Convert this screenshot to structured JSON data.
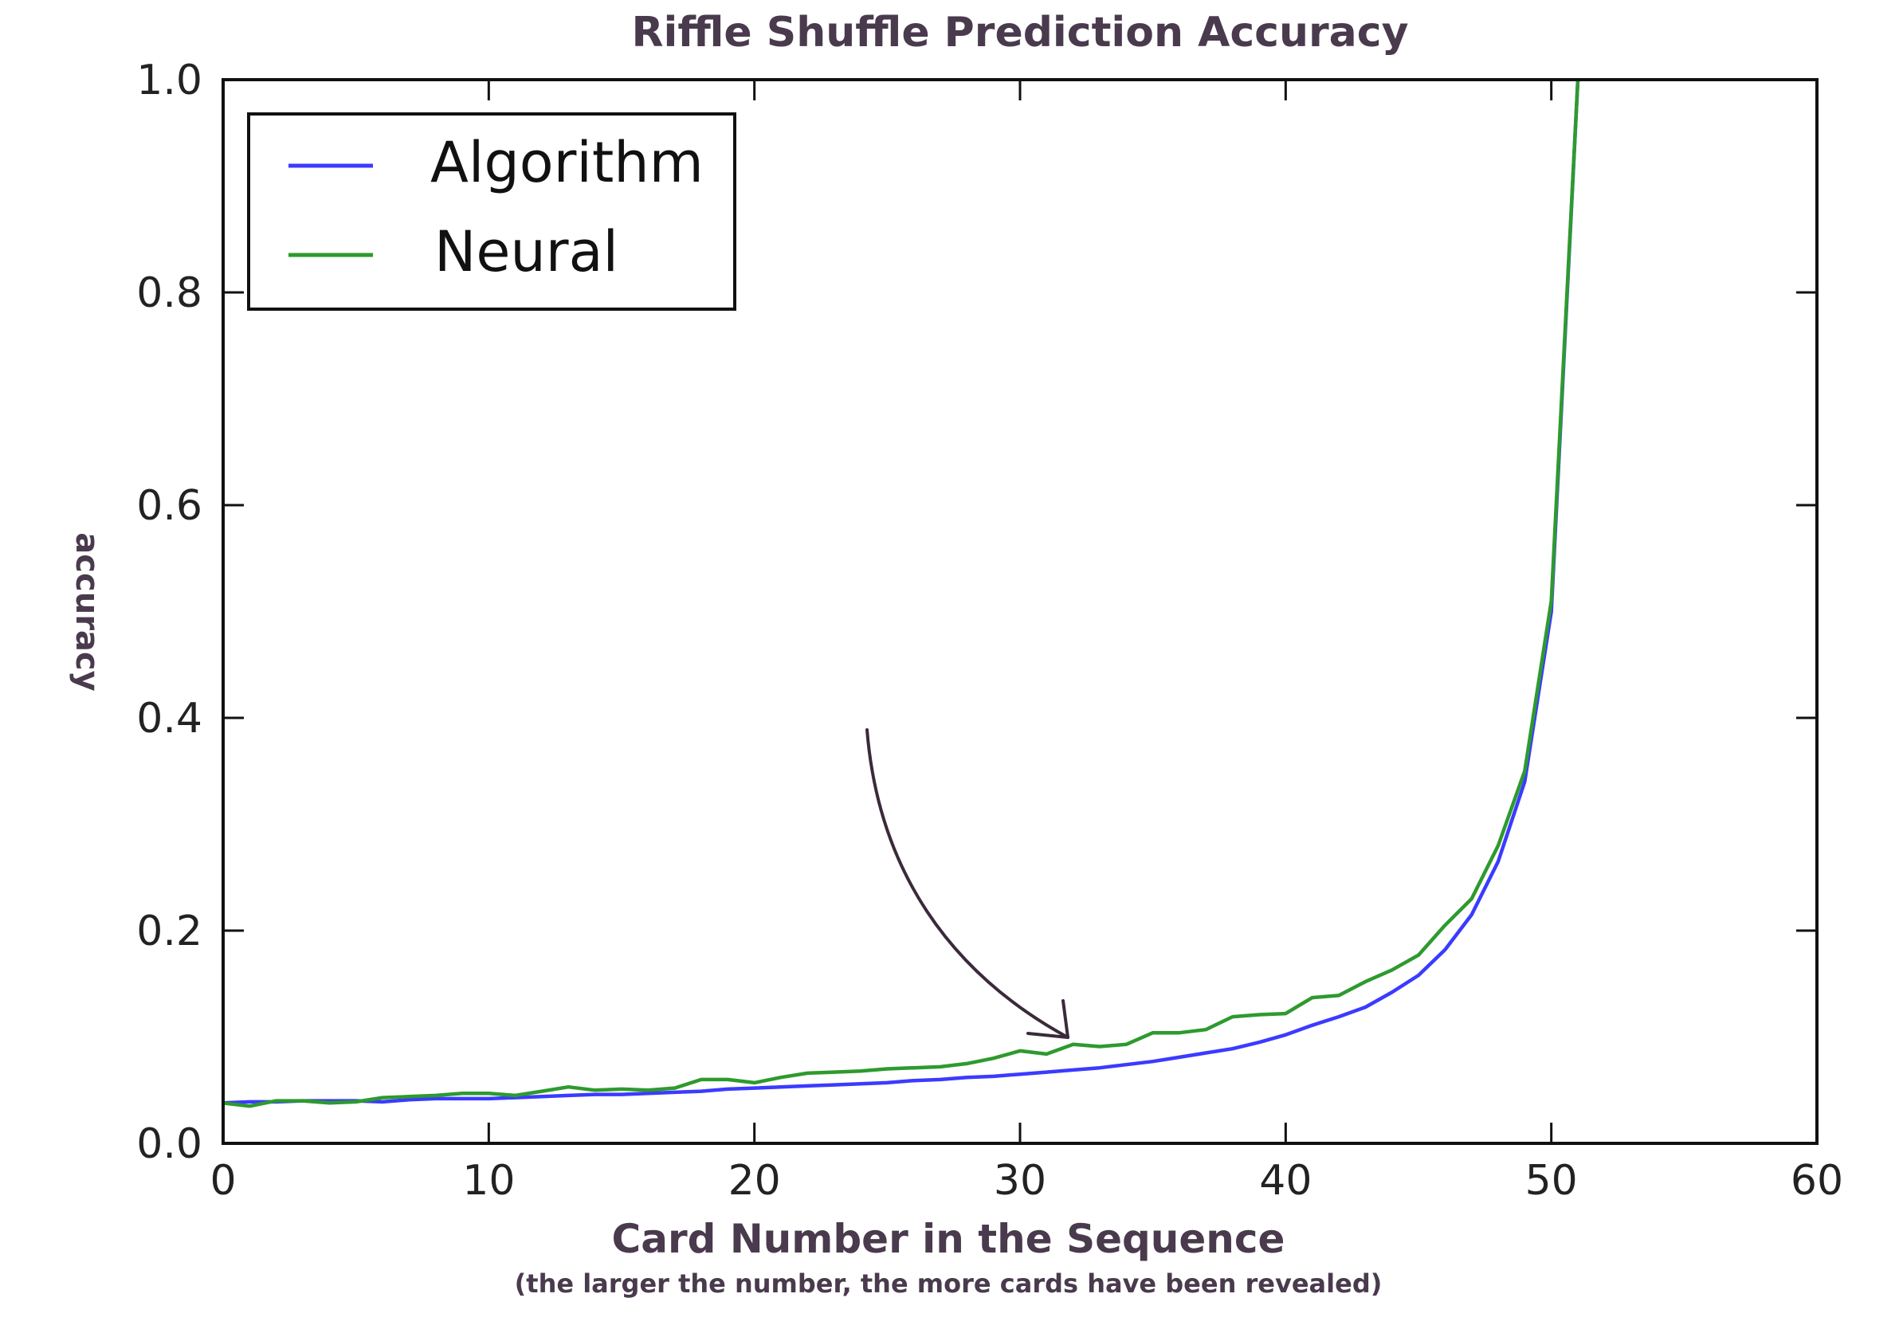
{
  "chart_data": {
    "type": "line",
    "title": "Riffle Shuffle Prediction Accuracy",
    "xlabel": "Card Number in the Sequence",
    "xlabel_note": "(the larger the number, the more cards have been revealed)",
    "ylabel": "accuracy",
    "xlim": [
      0,
      60
    ],
    "ylim": [
      0.0,
      1.0
    ],
    "xticks": [
      "0",
      "10",
      "20",
      "30",
      "40",
      "50",
      "60"
    ],
    "yticks": [
      "0.0",
      "0.2",
      "0.4",
      "0.6",
      "0.8",
      "1.0"
    ],
    "grid": false,
    "legend": "top-left",
    "annotation": "curved arrow pointing to the Neural line near card 32",
    "series": [
      {
        "name": "Algorithm",
        "color": "#3b3bff",
        "x": [
          0,
          1,
          2,
          3,
          4,
          5,
          6,
          7,
          8,
          9,
          10,
          11,
          12,
          13,
          14,
          15,
          16,
          17,
          18,
          19,
          20,
          21,
          22,
          23,
          24,
          25,
          26,
          27,
          28,
          29,
          30,
          31,
          32,
          33,
          34,
          35,
          36,
          37,
          38,
          39,
          40,
          41,
          42,
          43,
          44,
          45,
          46,
          47,
          48,
          49,
          50,
          51
        ],
        "y": [
          0.038,
          0.039,
          0.039,
          0.04,
          0.04,
          0.04,
          0.039,
          0.041,
          0.042,
          0.042,
          0.042,
          0.043,
          0.044,
          0.045,
          0.046,
          0.046,
          0.047,
          0.048,
          0.049,
          0.051,
          0.052,
          0.053,
          0.054,
          0.055,
          0.056,
          0.057,
          0.059,
          0.06,
          0.062,
          0.063,
          0.065,
          0.067,
          0.069,
          0.071,
          0.074,
          0.077,
          0.081,
          0.085,
          0.089,
          0.095,
          0.102,
          0.111,
          0.119,
          0.128,
          0.142,
          0.158,
          0.182,
          0.215,
          0.265,
          0.34,
          0.5,
          1.0
        ]
      },
      {
        "name": "Neural",
        "color": "#2e9a2e",
        "x": [
          0,
          1,
          2,
          3,
          4,
          5,
          6,
          7,
          8,
          9,
          10,
          11,
          12,
          13,
          14,
          15,
          16,
          17,
          18,
          19,
          20,
          21,
          22,
          23,
          24,
          25,
          26,
          27,
          28,
          29,
          30,
          31,
          32,
          33,
          34,
          35,
          36,
          37,
          38,
          39,
          40,
          41,
          42,
          43,
          44,
          45,
          46,
          47,
          48,
          49,
          50,
          51
        ],
        "y": [
          0.038,
          0.035,
          0.04,
          0.04,
          0.038,
          0.039,
          0.043,
          0.044,
          0.045,
          0.047,
          0.047,
          0.045,
          0.049,
          0.053,
          0.05,
          0.051,
          0.05,
          0.052,
          0.06,
          0.06,
          0.057,
          0.062,
          0.066,
          0.067,
          0.068,
          0.07,
          0.071,
          0.072,
          0.075,
          0.08,
          0.087,
          0.084,
          0.093,
          0.091,
          0.093,
          0.104,
          0.104,
          0.107,
          0.119,
          0.121,
          0.122,
          0.137,
          0.139,
          0.152,
          0.163,
          0.177,
          0.205,
          0.23,
          0.28,
          0.35,
          0.51,
          1.0
        ]
      }
    ]
  }
}
